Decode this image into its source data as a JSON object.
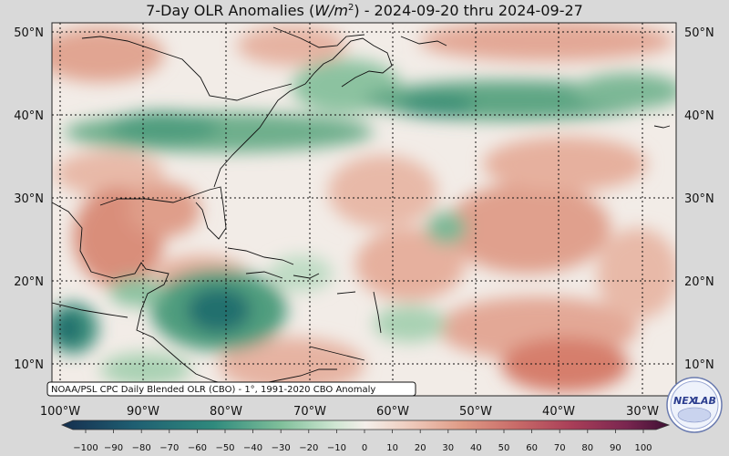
{
  "title": {
    "prefix": "7-Day OLR Anomalies (",
    "unit_base": "W/m",
    "unit_exp": "2",
    "suffix": ") - 2024-09-20 thru 2024-09-27"
  },
  "map": {
    "lon_labels": [
      "100°W",
      "90°W",
      "80°W",
      "70°W",
      "60°W",
      "50°W",
      "40°W",
      "30°W"
    ],
    "lat_labels": [
      "50°N",
      "40°N",
      "30°N",
      "20°N",
      "10°N"
    ],
    "lat_labels_right": [
      "50°N",
      "40°N",
      "30°N",
      "20°N",
      "10°N"
    ],
    "gridlines": true
  },
  "colorbar": {
    "tick_labels": [
      "−100",
      "−90",
      "−80",
      "−70",
      "−60",
      "−50",
      "−40",
      "−30",
      "−20",
      "−10",
      "0",
      "10",
      "20",
      "30",
      "40",
      "50",
      "60",
      "70",
      "80",
      "90",
      "100"
    ],
    "min": -100,
    "max": 100,
    "colors": {
      "neg_extreme": "#152f4f",
      "neg_strong": "#1f6e74",
      "neg_mid": "#3d9a83",
      "neg_light": "#a9d1b3",
      "neutral": "#f4efea",
      "pos_light": "#e8b4a1",
      "pos_mid": "#d77c6a",
      "pos_strong": "#a93e58",
      "pos_extreme": "#5a1a45"
    }
  },
  "credit": "NOAA/PSL CPC Daily Blended OLR (CBO) - 1°, 1991-2020 CBO Anomaly",
  "logo": {
    "name": "NEXLAB",
    "text_left": "NEX",
    "text_right": "LAB",
    "accent": "#2c3e8f"
  }
}
